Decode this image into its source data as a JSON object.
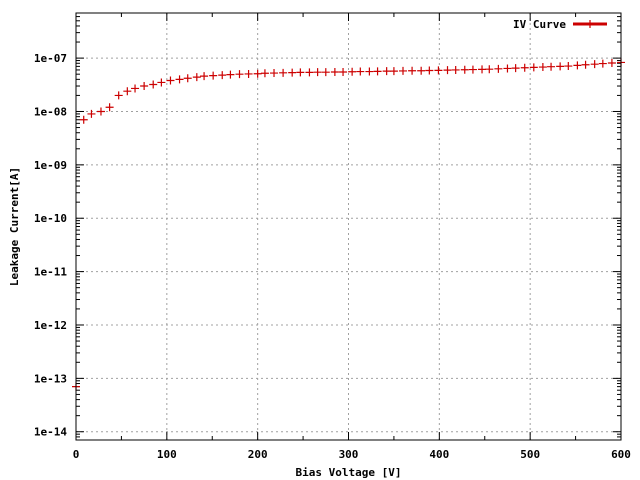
{
  "chart_data": {
    "type": "scatter",
    "xlabel": "Bias Voltage [V]",
    "ylabel": "Leakage Current[A]",
    "xlim": [
      0,
      600
    ],
    "ylim": [
      7e-15,
      7e-07
    ],
    "yscale": "log",
    "x_ticks": [
      0,
      100,
      200,
      300,
      400,
      500,
      600
    ],
    "x_tick_labels": [
      "0",
      "100",
      "200",
      "300",
      "400",
      "500",
      "600"
    ],
    "y_ticks": [
      1e-14,
      1e-13,
      1e-12,
      1e-11,
      1e-10,
      1e-09,
      1e-08,
      1e-07
    ],
    "y_tick_labels": [
      "1e-14",
      "1e-13",
      "1e-12",
      "1e-11",
      "1e-10",
      "1e-09",
      "1e-08",
      "1e-07"
    ],
    "grid": true,
    "legend_position": "top-right",
    "series": [
      {
        "name": "IV Curve",
        "color": "#cc0000",
        "marker": "plus",
        "x": [
          0,
          8.5,
          17,
          27.5,
          37,
          47,
          56.5,
          65,
          75,
          85,
          94,
          104,
          114,
          123,
          133,
          141,
          151,
          161,
          170,
          180,
          190,
          200,
          208,
          218,
          228,
          238,
          247,
          257,
          266,
          275,
          285,
          294,
          304,
          313,
          323,
          332,
          342,
          350,
          360,
          370,
          380,
          389,
          399,
          409,
          418,
          428,
          437,
          447,
          455,
          465,
          475,
          484,
          494,
          504,
          514,
          523,
          533,
          542,
          552,
          561,
          571,
          580,
          590,
          600
        ],
        "y": [
          7e-14,
          7e-09,
          9e-09,
          1e-08,
          1.2e-08,
          2e-08,
          2.4e-08,
          2.7e-08,
          3e-08,
          3.2e-08,
          3.5e-08,
          3.8e-08,
          4e-08,
          4.2e-08,
          4.4e-08,
          4.6e-08,
          4.7e-08,
          4.8e-08,
          4.9e-08,
          5e-08,
          5.05e-08,
          5.1e-08,
          5.2e-08,
          5.25e-08,
          5.3e-08,
          5.35e-08,
          5.4e-08,
          5.4e-08,
          5.45e-08,
          5.45e-08,
          5.5e-08,
          5.5e-08,
          5.55e-08,
          5.6e-08,
          5.6e-08,
          5.65e-08,
          5.7e-08,
          5.7e-08,
          5.75e-08,
          5.8e-08,
          5.8e-08,
          5.85e-08,
          5.9e-08,
          5.95e-08,
          6e-08,
          6.05e-08,
          6.1e-08,
          6.15e-08,
          6.2e-08,
          6.3e-08,
          6.4e-08,
          6.5e-08,
          6.6e-08,
          6.7e-08,
          6.8e-08,
          6.9e-08,
          7e-08,
          7.1e-08,
          7.3e-08,
          7.5e-08,
          7.7e-08,
          7.9e-08,
          8.1e-08,
          8.3e-08
        ]
      }
    ]
  }
}
